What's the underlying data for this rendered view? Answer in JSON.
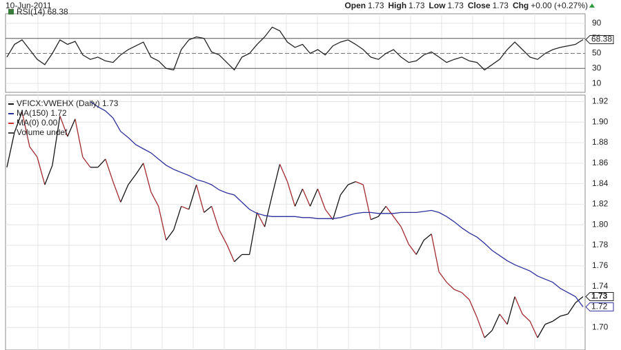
{
  "header": {
    "date": "10-Jun-2011",
    "quotes": [
      {
        "label": "Open",
        "value": "1.73"
      },
      {
        "label": "High",
        "value": "1.73"
      },
      {
        "label": "Low",
        "value": "1.73"
      },
      {
        "label": "Close",
        "value": "1.73"
      },
      {
        "label": "Chg",
        "value": "+0.00 (+0.27%)"
      }
    ]
  },
  "chart_data": [
    {
      "type": "line",
      "title": "RSI(14) 68.38",
      "series": [
        {
          "name": "RSI(14)",
          "color": "#222222",
          "values": [
            45,
            62,
            68,
            55,
            42,
            35,
            50,
            68,
            62,
            66,
            48,
            42,
            45,
            40,
            38,
            48,
            55,
            60,
            65,
            45,
            40,
            30,
            28,
            55,
            68,
            72,
            70,
            52,
            48,
            38,
            28,
            45,
            50,
            62,
            72,
            85,
            80,
            65,
            58,
            62,
            50,
            55,
            48,
            60,
            65,
            68,
            62,
            55,
            45,
            42,
            50,
            55,
            45,
            38,
            40,
            48,
            52,
            45,
            38,
            42,
            45,
            40,
            38,
            28,
            35,
            42,
            55,
            65,
            55,
            45,
            42,
            50,
            55,
            58,
            60,
            62,
            68.38
          ]
        }
      ],
      "ylim": [
        0,
        100
      ],
      "yticks": [
        10,
        30,
        50,
        70,
        90
      ],
      "bands": [
        30,
        70
      ],
      "midline": 50,
      "grid": true
    },
    {
      "type": "line",
      "series": [
        {
          "name": "VFICX:VWEHX (Daily) 1.73",
          "color": "#a0282d",
          "up_color": "#111111",
          "values": [
            1.856,
            1.89,
            1.91,
            1.876,
            1.866,
            1.839,
            1.858,
            1.906,
            1.886,
            1.903,
            1.866,
            1.856,
            1.856,
            1.864,
            1.842,
            1.822,
            1.839,
            1.849,
            1.86,
            1.832,
            1.818,
            1.785,
            1.795,
            1.818,
            1.815,
            1.839,
            1.812,
            1.818,
            1.795,
            1.781,
            1.764,
            1.771,
            1.771,
            1.812,
            1.798,
            1.829,
            1.859,
            1.842,
            1.818,
            1.835,
            1.818,
            1.835,
            1.815,
            1.805,
            1.829,
            1.839,
            1.842,
            1.839,
            1.805,
            1.808,
            1.818,
            1.808,
            1.798,
            1.781,
            1.771,
            1.785,
            1.791,
            1.754,
            1.744,
            1.737,
            1.734,
            1.727,
            1.71,
            1.69,
            1.697,
            1.713,
            1.703,
            1.73,
            1.713,
            1.706,
            1.69,
            1.703,
            1.706,
            1.711,
            1.713,
            1.724,
            1.73
          ]
        },
        {
          "name": "MA(150) 1.72",
          "color": "#2b2f9c",
          "values": [
            null,
            null,
            null,
            null,
            null,
            null,
            null,
            null,
            null,
            null,
            null,
            1.92,
            1.915,
            1.911,
            1.904,
            1.891,
            1.885,
            1.878,
            1.874,
            1.87,
            1.864,
            1.858,
            1.854,
            1.851,
            1.848,
            1.844,
            1.842,
            1.839,
            1.834,
            1.831,
            1.829,
            1.822,
            1.815,
            1.811,
            1.809,
            1.808,
            1.808,
            1.808,
            1.808,
            1.807,
            1.807,
            1.806,
            1.806,
            1.806,
            1.807,
            1.809,
            1.811,
            1.812,
            1.812,
            1.811,
            1.811,
            1.811,
            1.812,
            1.812,
            1.812,
            1.813,
            1.814,
            1.812,
            1.808,
            1.803,
            1.797,
            1.792,
            1.788,
            1.782,
            1.775,
            1.77,
            1.765,
            1.761,
            1.758,
            1.755,
            1.75,
            1.747,
            1.744,
            1.738,
            1.734,
            1.73,
            1.72
          ]
        }
      ],
      "legend_extra": [
        {
          "name": "MA(0) 0.00",
          "color": "#d0343a"
        },
        {
          "name": "Volume undef",
          "color": "#444444"
        }
      ],
      "ylim": [
        1.678,
        1.925
      ],
      "yticks": [
        {
          "value": 1.7,
          "label": "1.70"
        },
        1.72,
        1.74,
        1.76,
        1.78,
        {
          "value": 1.8,
          "label": "1.80"
        },
        1.82,
        1.84,
        1.86,
        1.88,
        {
          "value": 1.9,
          "label": "1.90"
        },
        1.92
      ],
      "grid": true
    }
  ]
}
